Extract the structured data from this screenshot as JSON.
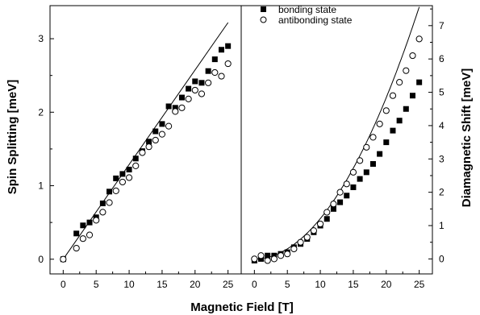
{
  "chart_data": [
    {
      "type": "scatter",
      "panel": "left",
      "title": "",
      "xlabel": "Magnetic Field [T]",
      "ylabel": "Spin Splitting [meV]",
      "xlim": [
        -2,
        27
      ],
      "ylim": [
        -0.2,
        3.45
      ],
      "xticks": [
        0,
        5,
        10,
        15,
        20,
        25
      ],
      "xticks_minor": [
        2.5,
        7.5,
        12.5,
        17.5,
        22.5
      ],
      "yticks": [
        0,
        1,
        2,
        3
      ],
      "yticks_minor": [
        0.5,
        1.5,
        2.5
      ],
      "x_tick_labels": [
        "0",
        "5",
        "10",
        "15",
        "20",
        "25"
      ],
      "y_tick_labels": [
        "0",
        "1",
        "2",
        "3"
      ],
      "grid": false,
      "series": [
        {
          "name": "bonding state",
          "marker": "filled-square",
          "color": "#000000",
          "x": [
            0,
            2,
            3,
            4,
            5,
            6,
            7,
            8,
            9,
            10,
            11,
            12,
            13,
            14,
            15,
            16,
            17,
            18,
            19,
            20,
            21,
            22,
            23,
            24,
            25
          ],
          "y": [
            0.0,
            0.35,
            0.46,
            0.5,
            0.57,
            0.76,
            0.92,
            1.1,
            1.16,
            1.22,
            1.37,
            1.47,
            1.6,
            1.74,
            1.84,
            2.08,
            2.06,
            2.2,
            2.32,
            2.42,
            2.4,
            2.56,
            2.72,
            2.85,
            2.9
          ]
        },
        {
          "name": "antibonding state",
          "marker": "open-circle",
          "color": "#000000",
          "x": [
            0,
            2,
            3,
            4,
            5,
            6,
            7,
            8,
            9,
            10,
            11,
            12,
            13,
            14,
            15,
            16,
            17,
            18,
            19,
            20,
            21,
            22,
            23,
            24,
            25
          ],
          "y": [
            0.0,
            0.15,
            0.28,
            0.33,
            0.53,
            0.64,
            0.77,
            0.93,
            1.05,
            1.11,
            1.27,
            1.45,
            1.53,
            1.62,
            1.7,
            1.81,
            2.01,
            2.06,
            2.18,
            2.3,
            2.25,
            2.4,
            2.54,
            2.49,
            2.66
          ]
        },
        {
          "name": "",
          "type": "line",
          "color": "#000000",
          "x": [
            0,
            25
          ],
          "y": [
            0,
            3.22
          ]
        }
      ]
    },
    {
      "type": "scatter",
      "panel": "right",
      "title": "",
      "xlabel": "Magnetic Field [T]",
      "ylabel": "Diamagnetic Shift [meV]",
      "y_axis_side": "right",
      "xlim": [
        -2,
        27
      ],
      "ylim": [
        -0.45,
        7.6
      ],
      "xticks": [
        0,
        5,
        10,
        15,
        20,
        25
      ],
      "xticks_minor": [
        2.5,
        7.5,
        12.5,
        17.5,
        22.5
      ],
      "yticks": [
        0,
        1,
        2,
        3,
        4,
        5,
        6,
        7
      ],
      "yticks_minor": [
        0.5,
        1.5,
        2.5,
        3.5,
        4.5,
        5.5,
        6.5,
        7.5
      ],
      "x_tick_labels": [
        "0",
        "5",
        "10",
        "15",
        "20",
        "25"
      ],
      "y_tick_labels": [
        "0",
        "1",
        "2",
        "3",
        "4",
        "5",
        "6",
        "7"
      ],
      "grid": false,
      "legend": {
        "position": "top-center",
        "entries": [
          {
            "label": "bonding state",
            "marker": "filled-square"
          },
          {
            "label": "antibonding state",
            "marker": "open-circle"
          }
        ]
      },
      "series": [
        {
          "name": "bonding state",
          "marker": "filled-square",
          "color": "#000000",
          "x": [
            0,
            1,
            2,
            3,
            4,
            5,
            6,
            7,
            8,
            9,
            10,
            11,
            12,
            13,
            14,
            15,
            16,
            17,
            18,
            19,
            20,
            21,
            22,
            23,
            24,
            25
          ],
          "y": [
            -0.05,
            0.0,
            0.1,
            0.1,
            0.15,
            0.2,
            0.35,
            0.45,
            0.6,
            0.8,
            1.0,
            1.2,
            1.5,
            1.7,
            1.9,
            2.15,
            2.4,
            2.6,
            2.85,
            3.15,
            3.5,
            3.85,
            4.15,
            4.5,
            4.9,
            5.3
          ]
        },
        {
          "name": "antibonding state",
          "marker": "open-circle",
          "color": "#000000",
          "x": [
            0,
            1,
            2,
            3,
            4,
            5,
            6,
            7,
            8,
            9,
            10,
            11,
            12,
            13,
            14,
            15,
            16,
            17,
            18,
            19,
            20,
            21,
            22,
            23,
            24,
            25
          ],
          "y": [
            0.0,
            0.1,
            -0.05,
            0.0,
            0.1,
            0.15,
            0.3,
            0.5,
            0.65,
            0.85,
            1.05,
            1.4,
            1.65,
            2.0,
            2.25,
            2.6,
            2.95,
            3.35,
            3.65,
            4.05,
            4.45,
            4.9,
            5.3,
            5.65,
            6.1,
            6.6
          ]
        },
        {
          "name": "",
          "type": "line",
          "color": "#000000",
          "function": "0.0121*x^2",
          "x": [
            0,
            25
          ],
          "y": [
            0,
            7.56
          ]
        }
      ]
    }
  ]
}
